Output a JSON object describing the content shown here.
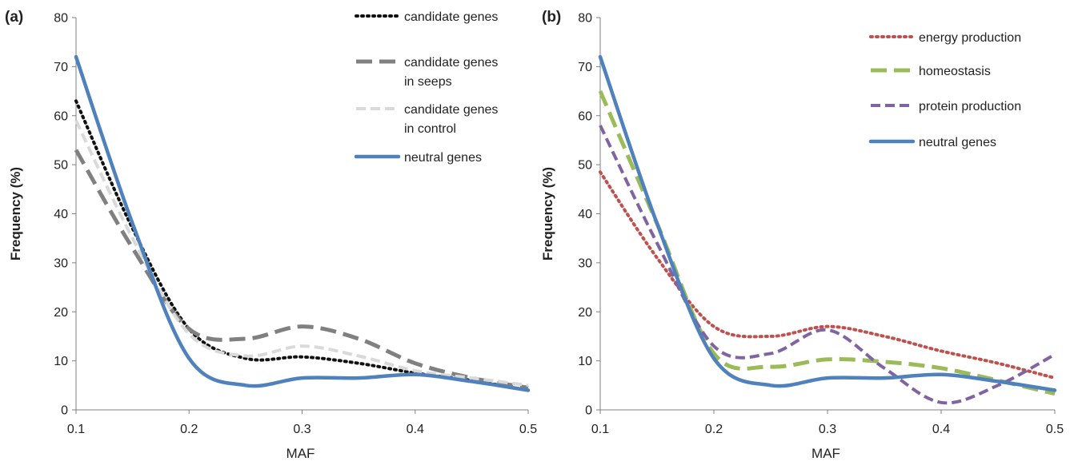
{
  "chart_data": [
    {
      "type": "line",
      "panel_label": "(a)",
      "xlabel": "MAF",
      "ylabel": "Frequency (%)",
      "xlim": [
        0.1,
        0.5
      ],
      "ylim": [
        0,
        80
      ],
      "xticks": [
        0.1,
        0.2,
        0.3,
        0.4,
        0.5
      ],
      "xtick_labels": [
        "0.1",
        "0.2",
        "0.3",
        "0.4",
        "0.5"
      ],
      "yticks": [
        0,
        10,
        20,
        30,
        40,
        50,
        60,
        70,
        80
      ],
      "legend_position": "top-right",
      "grid": false,
      "series": [
        {
          "name_lines": [
            "candidate genes"
          ],
          "color": "#111111",
          "style": "dotted",
          "x": [
            0.1,
            0.15,
            0.2,
            0.25,
            0.3,
            0.35,
            0.4,
            0.45,
            0.5
          ],
          "y": [
            63,
            37,
            16.5,
            10.5,
            10.8,
            9.5,
            7.5,
            6.0,
            4.0
          ]
        },
        {
          "name_lines": [
            "candidate genes",
            "in seeps"
          ],
          "color": "#808080",
          "style": "longdash",
          "x": [
            0.1,
            0.15,
            0.2,
            0.25,
            0.3,
            0.35,
            0.4,
            0.45,
            0.5
          ],
          "y": [
            53,
            33,
            16.5,
            14.5,
            17.0,
            14.5,
            9.5,
            6.5,
            4.5
          ]
        },
        {
          "name_lines": [
            "candidate genes",
            "in control"
          ],
          "color": "#d9d9d9",
          "style": "dash",
          "x": [
            0.1,
            0.15,
            0.2,
            0.25,
            0.3,
            0.35,
            0.4,
            0.45,
            0.5
          ],
          "y": [
            59,
            35,
            15.5,
            11.0,
            13.0,
            11.0,
            8.0,
            6.5,
            5.0
          ]
        },
        {
          "name_lines": [
            "neutral genes"
          ],
          "color": "#4f81bd",
          "style": "solid",
          "x": [
            0.1,
            0.15,
            0.2,
            0.25,
            0.3,
            0.35,
            0.4,
            0.45,
            0.5
          ],
          "y": [
            72,
            38,
            10.5,
            5.0,
            6.5,
            6.5,
            7.2,
            5.8,
            4.0
          ]
        }
      ]
    },
    {
      "type": "line",
      "panel_label": "(b)",
      "xlabel": "MAF",
      "ylabel": "Frequency (%)",
      "xlim": [
        0.1,
        0.5
      ],
      "ylim": [
        0,
        80
      ],
      "xticks": [
        0.1,
        0.2,
        0.3,
        0.4,
        0.5
      ],
      "xtick_labels": [
        "0.1",
        "0.2",
        "0.3",
        "0.4",
        "0.5"
      ],
      "yticks": [
        0,
        10,
        20,
        30,
        40,
        50,
        60,
        70,
        80
      ],
      "legend_position": "top-right",
      "grid": false,
      "series": [
        {
          "name_lines": [
            "energy production"
          ],
          "color": "#c0504d",
          "style": "dotted",
          "x": [
            0.1,
            0.15,
            0.2,
            0.25,
            0.3,
            0.35,
            0.4,
            0.45,
            0.5
          ],
          "y": [
            48.5,
            31,
            17.0,
            15.0,
            17.0,
            15.0,
            12.0,
            9.5,
            6.5
          ]
        },
        {
          "name_lines": [
            "homeostasis"
          ],
          "color": "#9bbb59",
          "style": "longdash",
          "x": [
            0.1,
            0.15,
            0.2,
            0.25,
            0.3,
            0.35,
            0.4,
            0.45,
            0.5
          ],
          "y": [
            65,
            38,
            11.5,
            8.8,
            10.3,
            9.8,
            8.5,
            6.0,
            3.3
          ]
        },
        {
          "name_lines": [
            "protein production"
          ],
          "color": "#8064a2",
          "style": "dash",
          "x": [
            0.1,
            0.15,
            0.2,
            0.25,
            0.3,
            0.35,
            0.4,
            0.45,
            0.5
          ],
          "y": [
            58,
            34,
            13.0,
            11.5,
            16.3,
            8.5,
            1.5,
            5.0,
            11.3
          ]
        },
        {
          "name_lines": [
            "neutral genes"
          ],
          "color": "#4f81bd",
          "style": "solid",
          "x": [
            0.1,
            0.15,
            0.2,
            0.25,
            0.3,
            0.35,
            0.4,
            0.45,
            0.5
          ],
          "y": [
            72,
            38,
            10.5,
            5.0,
            6.5,
            6.5,
            7.2,
            5.8,
            4.0
          ]
        }
      ]
    }
  ]
}
